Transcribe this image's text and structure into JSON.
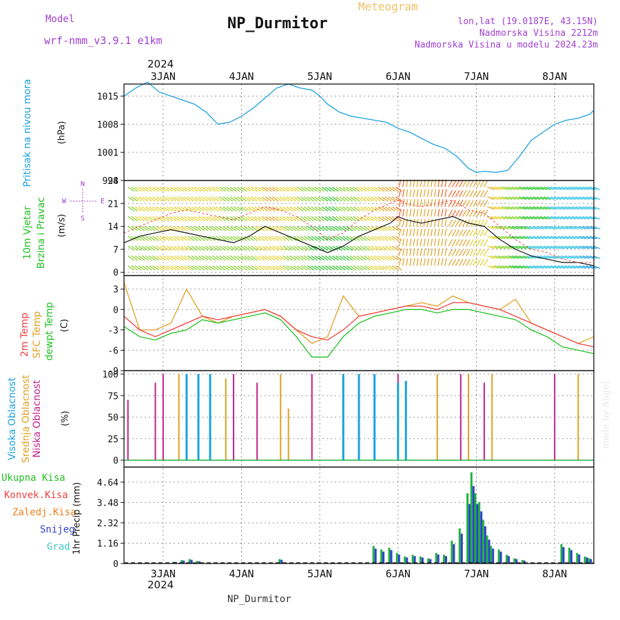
{
  "header": {
    "meteogram_label": "Meteogram",
    "station_title": "NP_Durmitor",
    "model_label": "Model",
    "model_name": "wrf-nmm_v3.9.1 e1km",
    "location": "lon,lat (19.0187E, 43.15N)",
    "elevation": "Nadmorska Visina 2212m",
    "model_elevation": "Nadmorska Visina u modelu 2024.23m",
    "watermark": "made by Angel"
  },
  "time_axis": {
    "year": "2024",
    "day_labels": [
      "3JAN",
      "4JAN",
      "5JAN",
      "6JAN",
      "7JAN",
      "8JAN"
    ],
    "day_positions": [
      2,
      3,
      4,
      5,
      6,
      7
    ],
    "x_range": [
      1.5,
      7.5
    ],
    "footer_label": "NP_Durmitor"
  },
  "panels": {
    "pressure": {
      "side_label": "Pritisak na nivou mora",
      "unit": "(hPa)",
      "ticks": [
        "1015",
        "1008",
        "1001",
        "994"
      ]
    },
    "wind": {
      "side_label_1": "10m Vjetar",
      "side_label_2": "Brzina i Pravac",
      "unit": "(m/s)",
      "ticks": [
        "0",
        "7",
        "14",
        "21",
        "28"
      ],
      "compass": "N\nE W\nS"
    },
    "temp": {
      "label_1": "2m Temp",
      "label_2": "SFC Temp",
      "label_3": "dewpt Temp",
      "unit": "(C)",
      "ticks": [
        "3",
        "0",
        "-3",
        "-6",
        "-9"
      ]
    },
    "cloud": {
      "label_1": "Visoka Oblacnost",
      "label_2": "Srednja Oblacnost",
      "label_3": "Niska Oblacnost",
      "unit": "(%)",
      "ticks": [
        "0",
        "25",
        "50",
        "75",
        "100"
      ]
    },
    "precip": {
      "label_1": "Ukupna Kisa",
      "label_2": "Konvek.Kisa",
      "label_3": "Zaledj.Kisa",
      "label_4": "Snijeg",
      "label_5": "Grad",
      "unit": "1hr Precip (mm)",
      "ticks": [
        "0",
        "1.16",
        "2.32",
        "3.48",
        "4.64"
      ]
    }
  },
  "colors": {
    "pressure": "#1aa0e0",
    "temp2m": "#f04040",
    "sfc": "#e0a020",
    "dewpt": "#20c020",
    "high": "#1aa0e0",
    "mid": "#e0a020",
    "low": "#c0208a",
    "total": "#20b040",
    "conv": "#f04040",
    "freez": "#f08020",
    "snow": "#3040d0",
    "hail": "#40c8c8",
    "title_purple": "#a040d0",
    "title_orange": "#f0c060"
  },
  "chart_data": {
    "type": "line",
    "x_units": "days (January 2024)",
    "pressure": {
      "x": [
        1.5,
        1.65,
        1.8,
        1.95,
        2.1,
        2.25,
        2.4,
        2.55,
        2.7,
        2.85,
        3.0,
        3.15,
        3.3,
        3.45,
        3.6,
        3.75,
        3.9,
        4.0,
        4.1,
        4.25,
        4.4,
        4.55,
        4.7,
        4.85,
        5.0,
        5.15,
        5.3,
        5.45,
        5.6,
        5.75,
        5.9,
        6.0,
        6.1,
        6.25,
        6.4,
        6.55,
        6.7,
        6.85,
        7.0,
        7.15,
        7.3,
        7.45,
        7.5
      ],
      "y": [
        1015,
        1017,
        1018.5,
        1016,
        1015,
        1014,
        1013,
        1011,
        1008,
        1008.5,
        1010,
        1012,
        1014.5,
        1017,
        1018,
        1017,
        1016.5,
        1015,
        1013,
        1011,
        1010,
        1009.5,
        1009,
        1008.5,
        1007,
        1006,
        1004.5,
        1003,
        1002,
        1000,
        997,
        996,
        996.3,
        996,
        996.5,
        1000,
        1004,
        1006,
        1008,
        1009,
        1009.5,
        1010.5,
        1011.5
      ]
    },
    "wind": {
      "x": [
        1.5,
        1.7,
        1.9,
        2.1,
        2.3,
        2.5,
        2.7,
        2.9,
        3.1,
        3.3,
        3.5,
        3.7,
        3.9,
        4.1,
        4.3,
        4.5,
        4.7,
        4.9,
        5.0,
        5.1,
        5.3,
        5.5,
        5.7,
        5.9,
        6.1,
        6.3,
        6.5,
        6.7,
        6.9,
        7.1,
        7.3,
        7.5
      ],
      "speed": [
        9,
        11,
        12,
        13,
        12,
        11,
        10,
        9,
        11,
        14,
        12,
        10,
        8,
        6,
        8,
        11,
        13,
        15,
        17,
        16,
        15,
        16,
        17,
        15,
        14,
        10,
        7,
        5,
        4,
        3,
        3,
        2
      ],
      "gust": [
        12,
        14,
        16,
        18,
        19,
        18,
        17,
        16,
        18,
        20,
        19,
        17,
        14,
        10,
        12,
        16,
        19,
        21,
        22,
        21,
        20,
        21,
        22,
        19,
        18,
        14,
        10,
        7,
        6,
        4,
        3,
        3
      ]
    },
    "temp": {
      "x": [
        1.5,
        1.7,
        1.9,
        2.1,
        2.3,
        2.5,
        2.7,
        2.9,
        3.1,
        3.3,
        3.5,
        3.7,
        3.9,
        4.1,
        4.3,
        4.5,
        4.7,
        4.9,
        5.1,
        5.3,
        5.5,
        5.7,
        5.9,
        6.1,
        6.3,
        6.5,
        6.7,
        6.9,
        7.1,
        7.3,
        7.5
      ],
      "t2m": [
        -1,
        -3,
        -4,
        -3,
        -2,
        -1,
        -1.5,
        -1,
        -0.5,
        0,
        -1,
        -3,
        -4,
        -4.5,
        -3,
        -1,
        -0.5,
        0,
        0.5,
        0.5,
        0,
        1,
        1,
        0.5,
        0,
        -1,
        -2,
        -3,
        -4,
        -5,
        -5.5
      ],
      "sfc": [
        4,
        -3,
        -3,
        -2,
        3,
        -1,
        -2,
        -1,
        -0.5,
        0,
        -1,
        -3,
        -5,
        -4,
        2,
        -1,
        -0.5,
        0,
        0.5,
        1,
        0.5,
        2,
        1,
        0.5,
        0,
        1.5,
        -2,
        -3,
        -4,
        -5,
        -4
      ],
      "dewpt": [
        -2.5,
        -4,
        -4.5,
        -3.5,
        -3,
        -1.5,
        -2,
        -1.5,
        -1,
        -0.5,
        -1.5,
        -4,
        -7,
        -7,
        -4,
        -2,
        -1,
        -0.5,
        0,
        0,
        -0.5,
        0,
        0,
        -0.5,
        -1,
        -1.5,
        -3,
        -4,
        -5.5,
        -6,
        -6.5
      ]
    },
    "cloud": {
      "high": [
        [
          2.3,
          100
        ],
        [
          2.45,
          100
        ],
        [
          2.6,
          100
        ],
        [
          4.3,
          100
        ],
        [
          4.5,
          100
        ],
        [
          4.7,
          100
        ],
        [
          5.0,
          90
        ],
        [
          5.1,
          92
        ]
      ],
      "mid": [
        [
          2.2,
          100
        ],
        [
          2.8,
          95
        ],
        [
          3.5,
          100
        ],
        [
          3.6,
          60
        ],
        [
          5.5,
          100
        ],
        [
          5.9,
          100
        ],
        [
          6.2,
          100
        ],
        [
          7.3,
          100
        ]
      ],
      "low": [
        [
          1.55,
          70
        ],
        [
          1.9,
          90
        ],
        [
          2.0,
          100
        ],
        [
          2.9,
          100
        ],
        [
          3.2,
          90
        ],
        [
          3.9,
          100
        ],
        [
          5.0,
          100
        ],
        [
          5.8,
          100
        ],
        [
          6.1,
          90
        ],
        [
          7.0,
          100
        ]
      ]
    },
    "precip": {
      "x": [
        2.15,
        2.25,
        2.35,
        2.45,
        3.5,
        4.7,
        4.8,
        4.9,
        5.0,
        5.1,
        5.2,
        5.3,
        5.4,
        5.5,
        5.6,
        5.7,
        5.8,
        5.9,
        5.95,
        6.0,
        6.05,
        6.1,
        6.15,
        6.2,
        6.3,
        6.4,
        6.5,
        6.6,
        7.1,
        7.2,
        7.3,
        7.4,
        7.45
      ],
      "total": [
        0.1,
        0.2,
        0.25,
        0.15,
        0.25,
        1.0,
        0.8,
        0.9,
        0.6,
        0.4,
        0.5,
        0.4,
        0.3,
        0.6,
        0.5,
        1.3,
        2.0,
        4.0,
        5.2,
        4.0,
        3.5,
        2.5,
        1.6,
        1.0,
        0.8,
        0.5,
        0.3,
        0.2,
        1.1,
        0.9,
        0.6,
        0.4,
        0.3
      ]
    }
  }
}
